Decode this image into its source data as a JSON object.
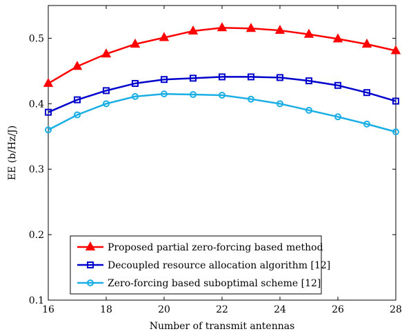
{
  "chart_data": {
    "type": "line",
    "xlabel": "Number of transmit antennas",
    "ylabel": "EE (b/Hz/J)",
    "xlim": [
      16,
      28
    ],
    "ylim": [
      0.1,
      0.55
    ],
    "x_ticks": [
      "16",
      "18",
      "20",
      "22",
      "24",
      "26",
      "28"
    ],
    "y_ticks": [
      "0.1",
      "0.2",
      "0.3",
      "0.4",
      "0.5"
    ],
    "grid": false,
    "legend_position": "bottom-center",
    "x": [
      16,
      17,
      18,
      19,
      20,
      21,
      22,
      23,
      24,
      25,
      26,
      27,
      28
    ],
    "series": [
      {
        "name": "Proposed partial zero-forcing based method",
        "color": "#ff0000",
        "marker": "triangle",
        "values": [
          0.431,
          0.457,
          0.476,
          0.491,
          0.501,
          0.511,
          0.516,
          0.515,
          0.512,
          0.506,
          0.499,
          0.491,
          0.481
        ]
      },
      {
        "name": "Decoupled resource allocation algorithm [12]",
        "color": "#0000cc",
        "marker": "square",
        "values": [
          0.387,
          0.406,
          0.42,
          0.431,
          0.437,
          0.439,
          0.441,
          0.441,
          0.44,
          0.435,
          0.428,
          0.417,
          0.404
        ]
      },
      {
        "name": "Zero-forcing based suboptimal scheme [12]",
        "color": "#1aaee5",
        "marker": "circle",
        "values": [
          0.36,
          0.383,
          0.4,
          0.411,
          0.415,
          0.414,
          0.413,
          0.407,
          0.4,
          0.39,
          0.38,
          0.369,
          0.357
        ]
      }
    ]
  }
}
